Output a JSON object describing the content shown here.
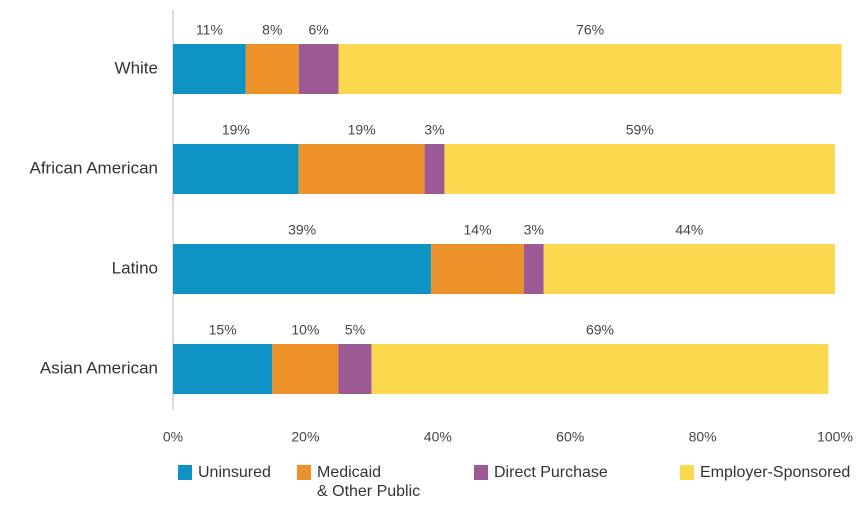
{
  "chart_data": {
    "type": "stacked_bar_horizontal",
    "categories": [
      "White",
      "African American",
      "Latino",
      "Asian American"
    ],
    "series": [
      {
        "name": "Uninsured",
        "color": "#0f93c4",
        "values": [
          11,
          19,
          39,
          15
        ],
        "value_labels": [
          "11%",
          "19%",
          "39%",
          "15%"
        ]
      },
      {
        "name": "Medicaid\n& Other Public",
        "color": "#ec9228",
        "values": [
          8,
          19,
          14,
          10
        ],
        "value_labels": [
          "8%",
          "19%",
          "14%",
          "10%"
        ]
      },
      {
        "name": "Direct Purchase",
        "color": "#9b5a94",
        "values": [
          6,
          3,
          3,
          5
        ],
        "value_labels": [
          "6%",
          "3%",
          "3%",
          "5%"
        ]
      },
      {
        "name": "Employer-Sponsored",
        "color": "#fbd84e",
        "values": [
          76,
          59,
          44,
          69
        ],
        "value_labels": [
          "76%",
          "59%",
          "44%",
          "69%"
        ]
      }
    ],
    "xlim": [
      0,
      100
    ],
    "xticks": [
      {
        "value": 0,
        "label": "0%"
      },
      {
        "value": 20,
        "label": "20%"
      },
      {
        "value": 40,
        "label": "40%"
      },
      {
        "value": 60,
        "label": "60%"
      },
      {
        "value": 80,
        "label": "80%"
      },
      {
        "value": 100,
        "label": "100%"
      }
    ],
    "legend": "bottom"
  }
}
